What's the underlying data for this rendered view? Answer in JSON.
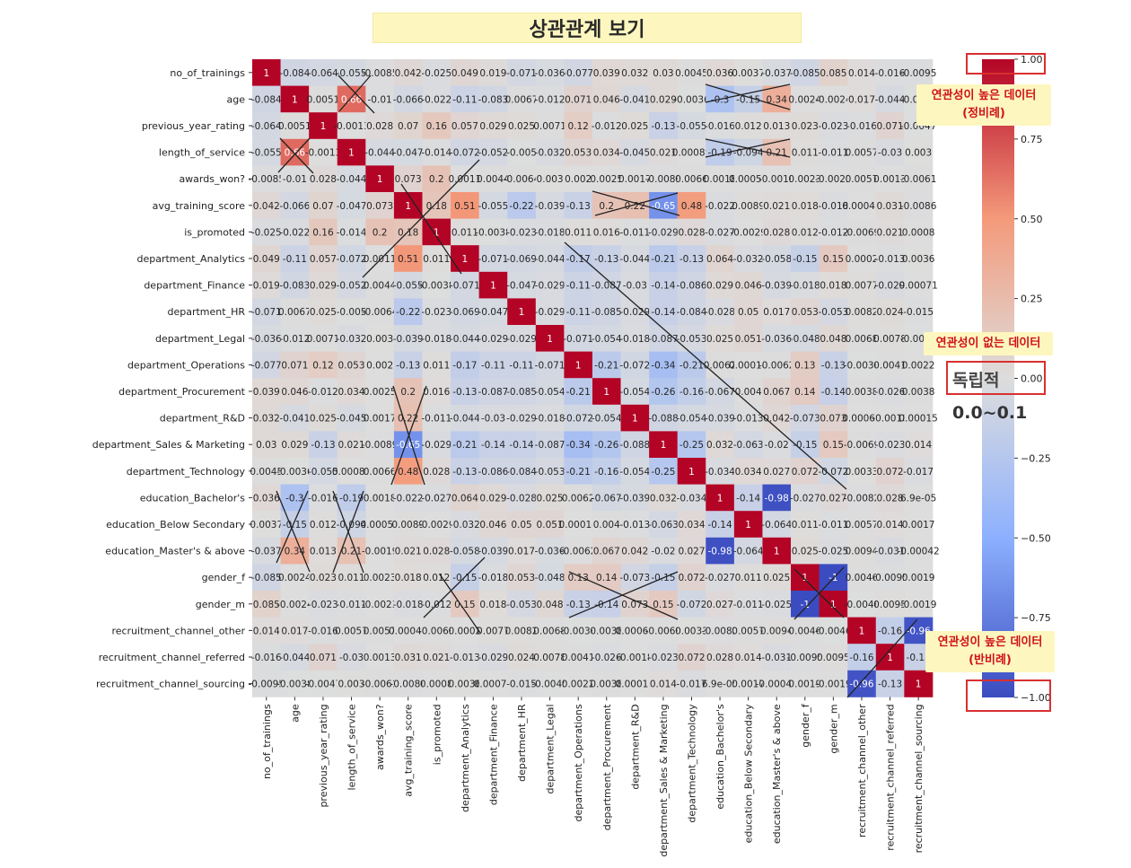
{
  "title": "상관관계 보기",
  "chart_data": {
    "type": "heatmap",
    "title": "",
    "variables": [
      "no_of_trainings",
      "age",
      "previous_year_rating",
      "length_of_service",
      "awards_won?",
      "avg_training_score",
      "is_promoted",
      "department_Analytics",
      "department_Finance",
      "department_HR",
      "department_Legal",
      "department_Operations",
      "department_Procurement",
      "department_R&D",
      "department_Sales & Marketing",
      "department_Technology",
      "education_Bachelor's",
      "education_Below Secondary",
      "education_Master's & above",
      "gender_f",
      "gender_m",
      "recruitment_channel_other",
      "recruitment_channel_referred",
      "recruitment_channel_sourcing"
    ],
    "labels": [
      [
        "1",
        "-0.084",
        "-0.064",
        "-0.055",
        "-0.0085",
        "0.042",
        "-0.025",
        "0.049",
        "0.019",
        "-0.071",
        "-0.036",
        "-0.077",
        "0.039",
        "0.032",
        "0.03",
        "0.0045",
        "0.036",
        "0.0037",
        "-0.037",
        "-0.085",
        "0.085",
        "0.014",
        "-0.016",
        "-0.0095"
      ],
      [
        "-0.084",
        "1",
        "0.0051",
        "0.66",
        "-0.01",
        "-0.066",
        "-0.022",
        "-0.11",
        "-0.083",
        "0.0067",
        "-0.012",
        "0.071",
        "0.046",
        "-0.041",
        "0.029",
        "-0.0036",
        "-0.3",
        "-0.15",
        "0.34",
        "0.0024",
        "-0.0024",
        "0.017",
        "-0.044",
        "-0.0038"
      ],
      [
        "-0.064",
        "0.0051",
        "1",
        "-0.0013",
        "0.028",
        "0.07",
        "0.16",
        "0.057",
        "0.029",
        "0.025",
        "0.0071",
        "0.12",
        "-0.012",
        "0.025",
        "-0.13",
        "-0.055",
        "-0.016",
        "0.012",
        "0.013",
        "0.023",
        "-0.023",
        "-0.016",
        "0.071",
        "-0.0047"
      ],
      [
        "-0.055",
        "0.66",
        "-0.0013",
        "1",
        "-0.044",
        "-0.047",
        "-0.014",
        "-0.072",
        "-0.052",
        "-0.005",
        "-0.032",
        "0.053",
        "0.034",
        "-0.045",
        "0.021",
        "0.00089",
        "-0.19",
        "-0.094",
        "0.21",
        "0.011",
        "-0.011",
        "0.0057",
        "-0.03",
        "0.003"
      ],
      [
        "-0.0085",
        "-0.01",
        "0.028",
        "-0.044",
        "1",
        "0.073",
        "0.2",
        "0.0011",
        "0.0044",
        "-0.0064",
        "0.003",
        "0.002",
        "0.0025",
        "0.0017",
        "-0.0089",
        "0.0066",
        "0.0018",
        "0.00057",
        "-0.0019",
        "0.0023",
        "-0.0023",
        "0.0057",
        "0.0013",
        "-0.0061"
      ],
      [
        "0.042",
        "-0.066",
        "0.07",
        "-0.047",
        "0.073",
        "1",
        "0.18",
        "0.51",
        "-0.055",
        "-0.22",
        "-0.039",
        "-0.13",
        "0.2",
        "0.22",
        "-0.65",
        "0.48",
        "-0.022",
        "0.0089",
        "0.021",
        "0.018",
        "-0.018",
        "0.00041",
        "0.031",
        "-0.0086"
      ],
      [
        "-0.025",
        "-0.022",
        "0.16",
        "-0.014",
        "0.2",
        "0.18",
        "1",
        "0.011",
        "-0.0038",
        "-0.023",
        "-0.018",
        "0.011",
        "0.016",
        "-0.011",
        "-0.029",
        "0.028",
        "-0.027",
        "-0.0029",
        "0.028",
        "0.012",
        "-0.012",
        "-0.0069",
        "0.021",
        "0.0008"
      ],
      [
        "0.049",
        "-0.11",
        "0.057",
        "-0.072",
        "0.0011",
        "0.51",
        "0.011",
        "1",
        "-0.071",
        "-0.069",
        "-0.044",
        "-0.17",
        "-0.13",
        "-0.044",
        "-0.21",
        "-0.13",
        "0.064",
        "-0.032",
        "-0.058",
        "-0.15",
        "0.15",
        "0.0002",
        "-0.013",
        "0.0036"
      ],
      [
        "0.019",
        "-0.083",
        "0.029",
        "-0.052",
        "0.0044",
        "-0.055",
        "-0.0038",
        "-0.071",
        "1",
        "-0.047",
        "-0.029",
        "-0.11",
        "-0.087",
        "-0.03",
        "-0.14",
        "-0.086",
        "0.029",
        "0.046",
        "-0.039",
        "-0.018",
        "0.018",
        "0.0077",
        "-0.029",
        "0.00071"
      ],
      [
        "-0.071",
        "0.0067",
        "0.025",
        "-0.005",
        "-0.0064",
        "-0.22",
        "-0.023",
        "-0.069",
        "-0.047",
        "1",
        "-0.029",
        "-0.11",
        "-0.085",
        "-0.029",
        "-0.14",
        "-0.084",
        "-0.028",
        "0.05",
        "0.017",
        "0.053",
        "-0.053",
        "0.0082",
        "0.024",
        "-0.015"
      ],
      [
        "-0.036",
        "-0.012",
        "0.0071",
        "-0.032",
        "0.003",
        "-0.039",
        "-0.018",
        "-0.044",
        "-0.029",
        "-0.029",
        "1",
        "-0.071",
        "-0.054",
        "-0.018",
        "-0.087",
        "-0.053",
        "0.025",
        "0.051",
        "-0.036",
        "-0.048",
        "0.048",
        "0.0068",
        "0.0078",
        "-0.0045"
      ],
      [
        "-0.077",
        "0.071",
        "0.12",
        "0.053",
        "0.002",
        "-0.13",
        "0.011",
        "-0.17",
        "-0.11",
        "-0.11",
        "-0.071",
        "1",
        "-0.21",
        "-0.072",
        "-0.34",
        "-0.21",
        "0.0062",
        "0.00014",
        "-0.0062",
        "0.13",
        "-0.13",
        "-0.0034",
        "0.0041",
        "0.0022"
      ],
      [
        "0.039",
        "0.046",
        "-0.012",
        "0.034",
        "0.0025",
        "0.2",
        "0.016",
        "-0.13",
        "-0.087",
        "-0.085",
        "-0.054",
        "-0.21",
        "1",
        "-0.054",
        "-0.26",
        "-0.16",
        "-0.067",
        "0.004",
        "0.067",
        "0.14",
        "-0.14",
        "0.0038",
        "-0.026",
        "0.0038"
      ],
      [
        "0.032",
        "-0.041",
        "0.025",
        "-0.045",
        "0.0017",
        "0.22",
        "-0.011",
        "-0.044",
        "-0.03",
        "-0.029",
        "-0.018",
        "-0.072",
        "-0.054",
        "1",
        "-0.088",
        "-0.054",
        "-0.039",
        "-0.013",
        "0.042",
        "-0.073",
        "0.073",
        "0.00067",
        "-0.0018",
        "0.00015"
      ],
      [
        "0.03",
        "0.029",
        "-0.13",
        "0.021",
        "-0.0089",
        "-0.65",
        "-0.029",
        "-0.21",
        "-0.14",
        "-0.14",
        "-0.087",
        "-0.34",
        "-0.26",
        "-0.088",
        "1",
        "-0.25",
        "0.032",
        "-0.063",
        "-0.02",
        "-0.15",
        "0.15",
        "-0.0069",
        "-0.023",
        "0.014"
      ],
      [
        "0.0045",
        "-0.0036",
        "-0.055",
        "0.00089",
        "0.0066",
        "0.48",
        "0.028",
        "-0.13",
        "-0.086",
        "-0.084",
        "-0.053",
        "-0.21",
        "-0.16",
        "-0.054",
        "-0.25",
        "1",
        "-0.034",
        "0.034",
        "0.027",
        "0.072",
        "-0.072",
        "0.0033",
        "0.072",
        "-0.017"
      ],
      [
        "0.036",
        "-0.3",
        "-0.016",
        "-0.19",
        "0.0018",
        "-0.022",
        "-0.027",
        "0.064",
        "0.029",
        "-0.028",
        "0.025",
        "0.0062",
        "-0.067",
        "-0.039",
        "0.032",
        "-0.034",
        "1",
        "-0.14",
        "-0.98",
        "-0.027",
        "0.027",
        "-0.0082",
        "0.028",
        "6.9e-05"
      ],
      [
        "0.0037",
        "-0.15",
        "0.012",
        "-0.094",
        "0.00057",
        "0.0089",
        "-0.0029",
        "-0.032",
        "0.046",
        "0.05",
        "0.051",
        "0.00014",
        "0.004",
        "-0.013",
        "-0.063",
        "0.034",
        "-0.14",
        "1",
        "-0.064",
        "0.011",
        "-0.011",
        "0.0057",
        "0.014",
        "0.0017"
      ],
      [
        "-0.037",
        "0.34",
        "0.013",
        "0.21",
        "-0.0019",
        "0.021",
        "0.028",
        "-0.058",
        "-0.039",
        "0.017",
        "-0.036",
        "-0.0062",
        "0.067",
        "0.042",
        "-0.02",
        "0.027",
        "-0.98",
        "-0.064",
        "1",
        "0.025",
        "-0.025",
        "0.0094",
        "-0.031",
        "-0.00042"
      ],
      [
        "-0.085",
        "0.0024",
        "0.023",
        "0.011",
        "0.0023",
        "0.018",
        "0.012",
        "-0.15",
        "-0.018",
        "0.053",
        "-0.048",
        "0.13",
        "0.14",
        "-0.073",
        "-0.15",
        "0.072",
        "-0.027",
        "0.011",
        "0.025",
        "1",
        "-1",
        "0.0046",
        "-0.0095",
        "0.0019"
      ],
      [
        "0.085",
        "-0.0024",
        "-0.023",
        "-0.011",
        "-0.0023",
        "-0.018",
        "-0.012",
        "0.15",
        "0.018",
        "-0.053",
        "0.048",
        "-0.13",
        "-0.14",
        "0.073",
        "0.15",
        "-0.072",
        "0.027",
        "-0.011",
        "-0.025",
        "-1",
        "1",
        "-0.0046",
        "0.0095",
        "-0.0019"
      ],
      [
        "0.014",
        "0.017",
        "-0.016",
        "0.0057",
        "0.0057",
        "0.00041",
        "-0.0069",
        "0.0002",
        "0.0077",
        "0.0082",
        "0.0068",
        "-0.0034",
        "0.0038",
        "0.00067",
        "-0.0069",
        "0.0033",
        "-0.0082",
        "0.0057",
        "0.0094",
        "0.0046",
        "-0.0046",
        "1",
        "-0.16",
        "-0.96"
      ],
      [
        "-0.016",
        "-0.044",
        "0.071",
        "-0.03",
        "0.0013",
        "0.031",
        "0.021",
        "-0.013",
        "-0.029",
        "0.024",
        "0.0078",
        "0.0041",
        "-0.026",
        "-0.0018",
        "-0.023",
        "0.072",
        "0.028",
        "0.014",
        "-0.031",
        "-0.0095",
        "0.0095",
        "-0.16",
        "1",
        "-0.13"
      ],
      [
        "-0.0095",
        "-0.0038",
        "-0.0047",
        "0.003",
        "-0.0061",
        "-0.0086",
        "0.0008",
        "0.0036",
        "0.00071",
        "-0.015",
        "-0.0045",
        "0.0022",
        "0.0038",
        "0.00015",
        "0.014",
        "-0.017",
        "6.9e-05",
        "0.0017",
        "-0.00042",
        "0.0019",
        "-0.0019",
        "-0.96",
        "-0.13",
        "1"
      ]
    ],
    "colorbar": {
      "min": -1.0,
      "max": 1.0,
      "ticks": [
        "1.00",
        "0.75",
        "0.50",
        "0.25",
        "0.00",
        "−0.25",
        "−0.50",
        "−0.75",
        "−1.00"
      ],
      "tick_values": [
        1,
        0.75,
        0.5,
        0.25,
        0,
        -0.25,
        -0.5,
        -0.75,
        -1
      ]
    },
    "colormap": {
      "low": "#3b4cc0",
      "mid": "#dddddd",
      "high": "#b40426"
    }
  },
  "annotations": {
    "positive_title": "연관성이 높은 데이터",
    "positive_sub": "(정비례)",
    "none_title": "연관성이 없는 데이터",
    "independent": "독립적",
    "range": "0.0~0.1",
    "negative_title": "연관성이 높은 데이터",
    "negative_sub": "(반비례)"
  }
}
